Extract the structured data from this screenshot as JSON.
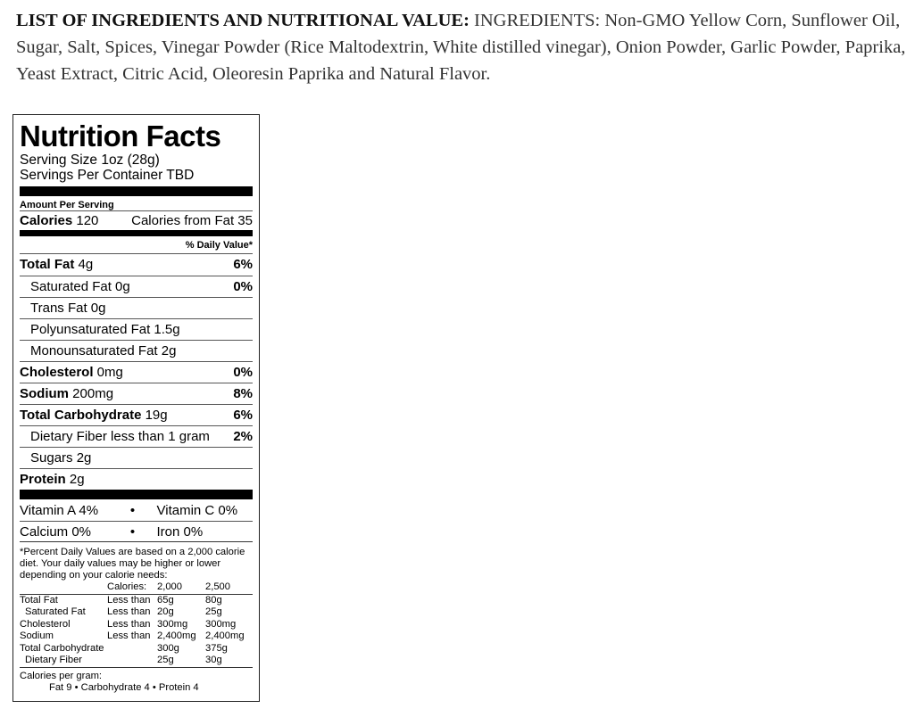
{
  "ingredients": {
    "heading": "LIST OF INGREDIENTS AND NUTRITIONAL VALUE:",
    "text": " INGREDIENTS:  Non-GMO Yellow Corn, Sunflower Oil, Sugar, Salt, Spices, Vinegar Powder (Rice Maltodextrin, White distilled vinegar), Onion Powder, Garlic Powder, Paprika, Yeast Extract, Citric Acid, Oleoresin Paprika and Natural Flavor."
  },
  "label": {
    "title": "Nutrition Facts",
    "serving_size": "Serving Size 1oz (28g)",
    "servings_per_container": "Servings Per Container TBD",
    "amount_per_serving": "Amount Per Serving",
    "calories_label": "Calories",
    "calories_value": " 120",
    "calories_from_fat": "Calories from Fat 35",
    "daily_value_header": "% Daily Value*",
    "nutrients": [
      {
        "name": "Total Fat",
        "amount": " 4g",
        "pct": "6%"
      },
      {
        "name": "Saturated Fat 0g",
        "amount": "",
        "pct": "0%"
      },
      {
        "name": "Trans Fat 0g",
        "amount": "",
        "pct": ""
      },
      {
        "name": "Polyunsaturated Fat 1.5g",
        "amount": "",
        "pct": ""
      },
      {
        "name": "Monounsaturated Fat 2g",
        "amount": "",
        "pct": ""
      },
      {
        "name": "Cholesterol",
        "amount": " 0mg",
        "pct": "0%"
      },
      {
        "name": "Sodium",
        "amount": " 200mg",
        "pct": "8%"
      },
      {
        "name": "Total Carbohydrate",
        "amount": " 19g",
        "pct": "6%"
      },
      {
        "name": "Dietary Fiber less than 1 gram",
        "amount": "",
        "pct": "2%"
      },
      {
        "name": "Sugars 2g",
        "amount": "",
        "pct": ""
      },
      {
        "name": "Protein",
        "amount": " 2g",
        "pct": ""
      }
    ],
    "vitamins": [
      [
        "Vitamin A 4%",
        "•",
        "Vitamin C 0%"
      ],
      [
        "Calcium 0%",
        "•",
        "Iron 0%"
      ]
    ],
    "footnote": "*Percent Daily Values are based on a 2,000 calorie diet. Your daily values may be higher or lower depending on your calorie needs:",
    "dv_table": {
      "header": [
        "",
        "Calories:",
        "2,000",
        "2,500"
      ],
      "rows": [
        [
          "Total Fat",
          "Less than",
          "65g",
          "80g"
        ],
        [
          "Saturated Fat",
          "Less than",
          "20g",
          "25g"
        ],
        [
          "Cholesterol",
          "Less than",
          "300mg",
          "300mg"
        ],
        [
          "Sodium",
          "Less than",
          "2,400mg",
          "2,400mg"
        ],
        [
          "Total Carbohydrate",
          "",
          "300g",
          "375g"
        ],
        [
          "Dietary Fiber",
          "",
          "25g",
          "30g"
        ]
      ]
    },
    "calories_per_gram": "Calories per gram:",
    "calories_per_gram_values": "Fat 9  •  Carbohydrate 4  •  Protein 4"
  }
}
